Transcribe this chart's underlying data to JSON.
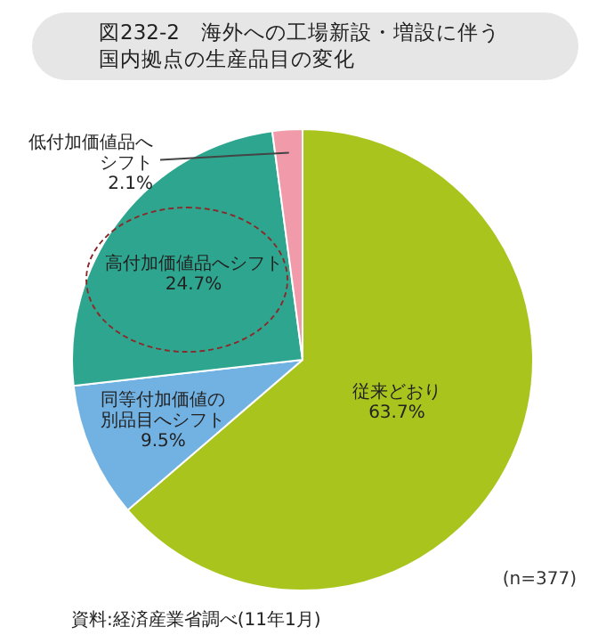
{
  "chart_data": {
    "type": "pie",
    "title": "図232-2　海外への工場新設・増設に伴う国内拠点の生産品目の変化",
    "categories": [
      "従来どおり",
      "同等付加価値の別品目へシフト",
      "高付加価値品へシフト",
      "低付加価値品へシフト"
    ],
    "values": [
      63.7,
      9.5,
      24.7,
      2.1
    ],
    "value_labels": [
      "63.7%",
      "9.5%",
      "24.7%",
      "2.1%"
    ],
    "colors": [
      "#a9c41c",
      "#72b2e2",
      "#2ea68f",
      "#f09aaa"
    ],
    "legend": false,
    "annotations": [
      "(n=377)",
      "資料:経済産業省調べ(11年1月)"
    ]
  }
}
